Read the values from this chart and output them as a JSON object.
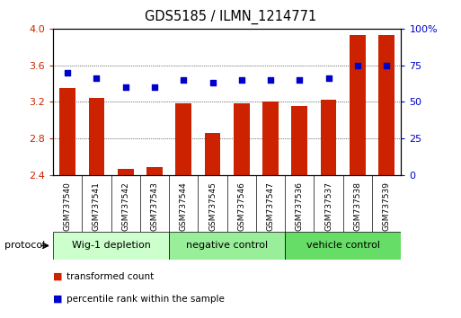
{
  "title": "GDS5185 / ILMN_1214771",
  "categories": [
    "GSM737540",
    "GSM737541",
    "GSM737542",
    "GSM737543",
    "GSM737544",
    "GSM737545",
    "GSM737546",
    "GSM737547",
    "GSM737536",
    "GSM737537",
    "GSM737538",
    "GSM737539"
  ],
  "bar_values": [
    3.35,
    3.24,
    2.47,
    2.49,
    3.18,
    2.86,
    3.18,
    3.2,
    3.15,
    3.22,
    3.93,
    3.93
  ],
  "scatter_values_pct": [
    70,
    66,
    60,
    60,
    65,
    63,
    65,
    65,
    65,
    66,
    75,
    75
  ],
  "bar_color": "#cc2200",
  "scatter_color": "#0000cc",
  "ylim_left": [
    2.4,
    4.0
  ],
  "ylim_right": [
    0,
    100
  ],
  "yticks_left": [
    2.4,
    2.8,
    3.2,
    3.6,
    4.0
  ],
  "yticks_right": [
    0,
    25,
    50,
    75,
    100
  ],
  "ytick_labels_right": [
    "0",
    "25",
    "50",
    "75",
    "100%"
  ],
  "bar_bottom": 2.4,
  "group_colors": [
    "#ccffcc",
    "#99ee99",
    "#66dd66"
  ],
  "group_labels": [
    "Wig-1 depletion",
    "negative control",
    "vehicle control"
  ],
  "group_starts": [
    0,
    4,
    8
  ],
  "group_ends": [
    4,
    8,
    12
  ],
  "group_label": "protocol",
  "legend_red": "transformed count",
  "legend_blue": "percentile rank within the sample",
  "bg_color": "#ffffff",
  "tick_label_color_left": "#cc2200",
  "tick_label_color_right": "#0000cc",
  "bar_width": 0.55,
  "scatter_size": 25,
  "xtick_bg": "#d0d0d0"
}
